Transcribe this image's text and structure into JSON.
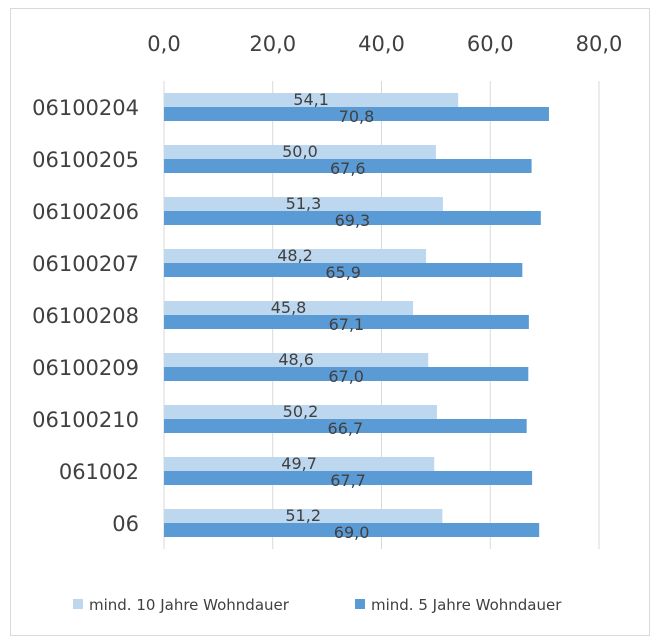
{
  "chart_data": {
    "type": "bar",
    "orientation": "horizontal",
    "categories": [
      "06100204",
      "06100205",
      "06100206",
      "06100207",
      "06100208",
      "06100209",
      "06100210",
      "061002",
      "06"
    ],
    "series": [
      {
        "name": "mind. 10 Jahre Wohndauer",
        "values": [
          54.1,
          50.0,
          51.3,
          48.2,
          45.8,
          48.6,
          50.2,
          49.7,
          51.2
        ],
        "labels": [
          "54,1",
          "50,0",
          "51,3",
          "48,2",
          "45,8",
          "48,6",
          "50,2",
          "49,7",
          "51,2"
        ],
        "color": "#bdd7ee"
      },
      {
        "name": "mind. 5 Jahre Wohndauer",
        "values": [
          70.8,
          67.6,
          69.3,
          65.9,
          67.1,
          67.0,
          66.7,
          67.7,
          69.0
        ],
        "labels": [
          "70,8",
          "67,6",
          "69,3",
          "65,9",
          "67,1",
          "67,0",
          "66,7",
          "67,7",
          "69,0"
        ],
        "color": "#5b9bd5"
      }
    ],
    "xlim": [
      0,
      80
    ],
    "xticks": [
      0,
      20,
      40,
      60,
      80
    ],
    "xtick_labels": [
      "0,0",
      "20,0",
      "40,0",
      "60,0",
      "80,0"
    ],
    "axis_position": "top",
    "grid": true,
    "legend": "bottom",
    "title": "",
    "xlabel": "",
    "ylabel": ""
  }
}
